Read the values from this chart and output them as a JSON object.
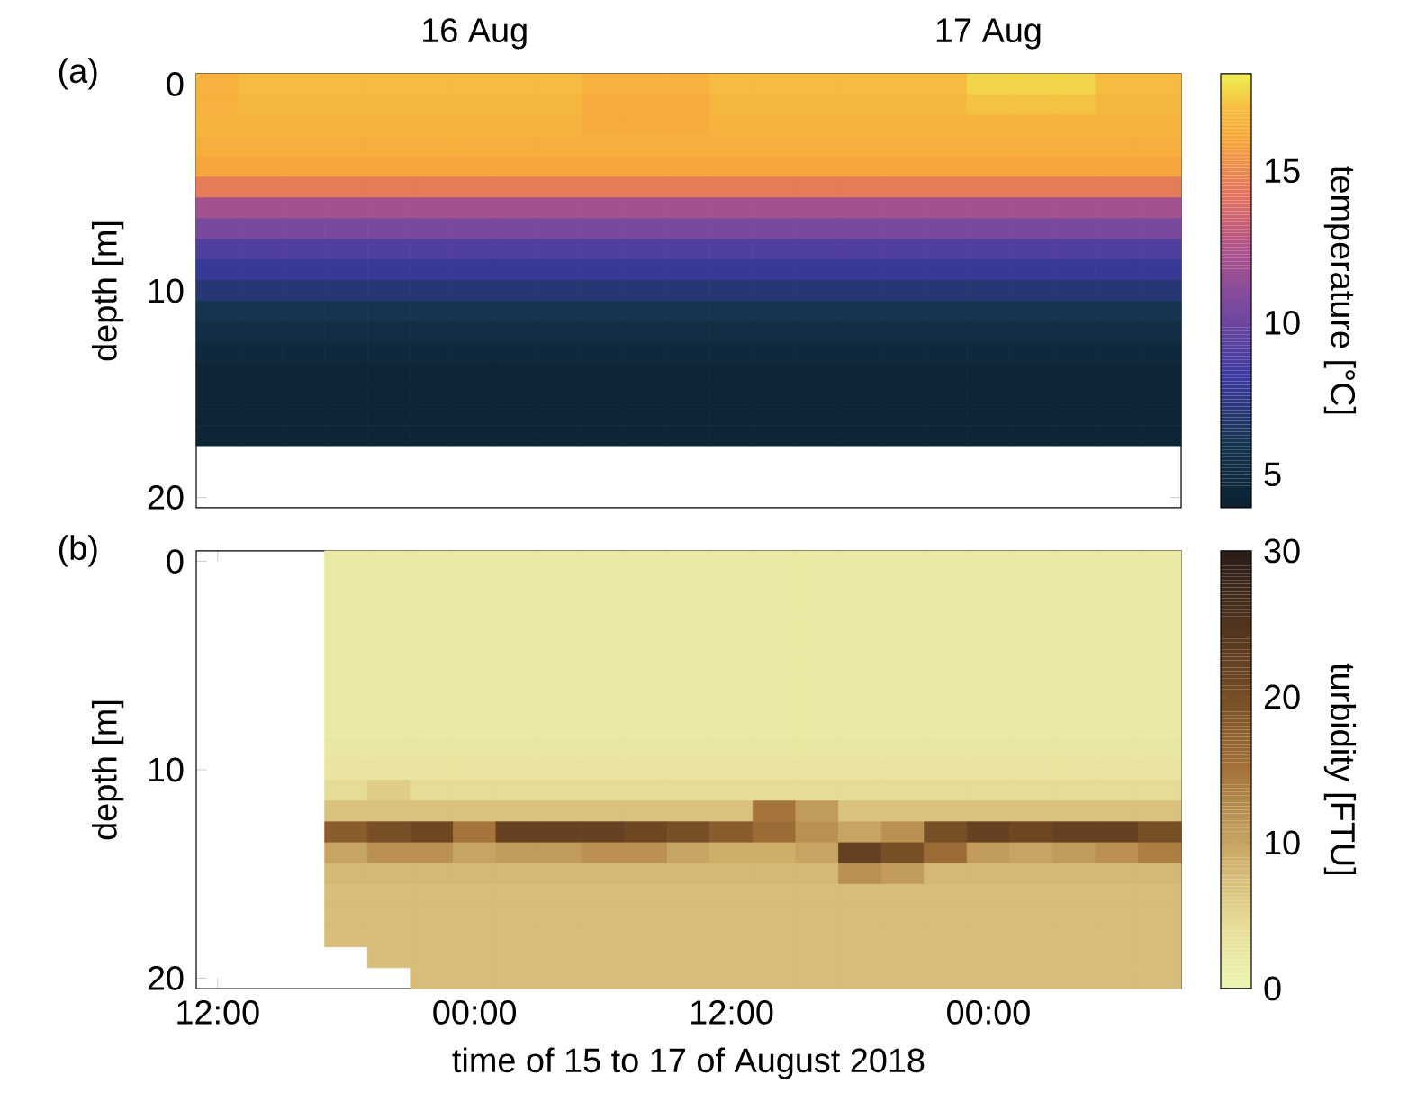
{
  "chart_data": [
    {
      "type": "heatmap",
      "ylabel": "depth [m]",
      "clabel": "temperature [°C]",
      "annotations": [
        "(a)",
        "16 Aug",
        "17 Aug",
        "20"
      ],
      "categories": [
        null,
        null,
        null,
        null,
        null,
        null,
        null,
        null,
        null,
        null,
        null,
        null,
        null,
        null,
        null,
        null,
        null,
        null,
        null,
        null,
        null,
        null,
        null
      ],
      "y_categories": [
        "0",
        null,
        null,
        null,
        null,
        null,
        null,
        null,
        null,
        null,
        "10",
        null,
        null,
        null,
        null,
        null,
        null,
        null
      ],
      "clim": [
        3.9,
        18.2
      ],
      "cticks": [
        5,
        10,
        15
      ],
      "cells": [
        [
          16.5,
          17,
          17,
          17,
          17,
          17,
          17,
          17,
          17,
          16.5,
          16.5,
          16.5,
          17,
          17,
          17,
          17,
          17,
          17,
          17.6,
          17.6,
          17.6,
          17,
          17
        ],
        [
          16.5,
          16.8,
          16.8,
          16.8,
          16.8,
          16.8,
          16.8,
          16.8,
          16.8,
          16.3,
          16.3,
          16.3,
          16.8,
          16.8,
          16.8,
          16.8,
          16.8,
          16.8,
          17.2,
          17.2,
          17.2,
          16.8,
          16.8
        ],
        [
          16.6,
          16.6,
          16.6,
          16.6,
          16.6,
          16.6,
          16.6,
          16.6,
          16.6,
          16.2,
          16.2,
          16.2,
          16.6,
          16.6,
          16.6,
          16.6,
          16.6,
          16.6,
          16.6,
          16.6,
          16.6,
          16.6,
          16.6
        ],
        [
          16.4,
          16.4,
          16.4,
          16.4,
          16.4,
          16.4,
          16.4,
          16.4,
          16.4,
          16.4,
          16.4,
          16.4,
          16.4,
          16.4,
          16.4,
          16.4,
          16.4,
          16.4,
          16.4,
          16.4,
          16.4,
          16.4,
          16.4
        ],
        [
          16,
          16,
          16,
          16,
          16,
          16,
          16,
          16,
          16,
          16,
          16,
          16,
          16,
          16,
          16,
          16,
          16,
          16,
          16,
          16,
          16,
          16,
          16
        ],
        [
          14.5,
          14.5,
          14.5,
          14.5,
          14.5,
          14.5,
          14.5,
          14.5,
          14.5,
          14.5,
          14.5,
          14.5,
          14.5,
          14.5,
          14.5,
          14.5,
          14.5,
          14.5,
          14.5,
          14.5,
          14.5,
          14.5,
          14.5
        ],
        [
          12,
          12,
          12,
          12,
          12,
          12,
          12,
          12,
          12,
          12,
          12,
          12,
          12,
          12,
          12,
          12,
          12,
          12,
          12,
          12,
          12,
          12,
          12
        ],
        [
          10.5,
          10.5,
          10.5,
          10.5,
          10.5,
          10.5,
          10.5,
          10.5,
          10.5,
          10.5,
          10.5,
          10.5,
          10.5,
          10.5,
          10.5,
          10.5,
          10.5,
          10.5,
          10.5,
          10.5,
          10.5,
          10.5,
          10.5
        ],
        [
          9,
          9,
          9,
          9,
          9,
          9,
          9,
          9,
          9,
          9,
          9,
          9,
          9,
          9,
          9,
          9,
          9,
          9,
          9,
          9,
          9,
          9,
          9
        ],
        [
          8,
          8,
          8,
          8,
          8,
          8,
          8,
          8,
          8,
          8,
          8,
          8,
          8,
          8,
          8,
          8,
          8,
          8,
          8,
          8,
          8,
          8,
          8
        ],
        [
          7,
          7,
          7,
          7,
          7,
          7,
          7,
          7,
          7,
          7,
          7,
          7,
          7,
          7,
          7,
          7,
          7,
          7,
          7,
          7,
          7,
          7,
          7
        ],
        [
          6,
          6,
          6,
          6,
          6,
          6,
          6,
          6,
          6,
          6,
          6,
          6,
          6,
          6,
          6,
          6,
          6,
          6,
          6,
          6,
          6,
          6,
          6
        ],
        [
          5.2,
          5.2,
          5.2,
          5.2,
          5.2,
          5.2,
          5.2,
          5.2,
          5.2,
          5.2,
          5.2,
          5.2,
          5.2,
          5.2,
          5.2,
          5.2,
          5.2,
          5.2,
          5.2,
          5.2,
          5.2,
          5.2,
          5.2
        ],
        [
          4.6,
          4.6,
          4.6,
          4.6,
          4.6,
          4.6,
          4.6,
          4.6,
          4.6,
          4.6,
          4.6,
          4.6,
          4.6,
          4.6,
          4.6,
          4.6,
          4.6,
          4.6,
          4.6,
          4.6,
          4.6,
          4.6,
          4.6
        ],
        [
          4.2,
          4.2,
          4.2,
          4.2,
          4.2,
          4.2,
          4.2,
          4.2,
          4.2,
          4.2,
          4.2,
          4.2,
          4.2,
          4.2,
          4.2,
          4.2,
          4.2,
          4.2,
          4.2,
          4.2,
          4.2,
          4.2,
          4.2
        ],
        [
          4.2,
          4.2,
          4.2,
          4.2,
          4.2,
          4.2,
          4.2,
          4.2,
          4.2,
          4.2,
          4.2,
          4.2,
          4.2,
          4.2,
          4.2,
          4.2,
          4.2,
          4.2,
          4.2,
          4.2,
          4.2,
          4.2,
          4.2
        ],
        [
          4.2,
          4.2,
          4.2,
          4.2,
          4.2,
          4.2,
          4.2,
          4.2,
          4.2,
          4.2,
          4.2,
          4.2,
          4.2,
          4.2,
          4.2,
          4.2,
          4.2,
          4.2,
          4.2,
          4.2,
          4.2,
          4.2,
          4.2
        ],
        [
          4.2,
          4.2,
          4.2,
          4.2,
          4.2,
          4.2,
          4.2,
          4.2,
          4.2,
          4.2,
          4.2,
          4.2,
          4.2,
          4.2,
          4.2,
          4.2,
          4.2,
          4.2,
          4.2,
          4.2,
          4.2,
          4.2,
          4.2
        ]
      ]
    },
    {
      "type": "heatmap",
      "xlabel": "time of 15 to 17 of August 2018",
      "ylabel": "depth [m]",
      "clabel": "turbidity [FTU]",
      "annotations": [
        "(b)"
      ],
      "categories": [
        "12:00",
        null,
        null,
        null,
        null,
        null,
        "00:00",
        null,
        null,
        null,
        null,
        null,
        "12:00",
        null,
        null,
        null,
        null,
        null,
        "00:00",
        null,
        null,
        null,
        null
      ],
      "y_categories": [
        "0",
        null,
        null,
        null,
        null,
        null,
        null,
        null,
        null,
        null,
        "10",
        null,
        null,
        null,
        null,
        null,
        null,
        null,
        null,
        null,
        "20"
      ],
      "clim": [
        0,
        30
      ],
      "cticks": [
        0,
        10,
        20,
        30
      ],
      "cells": [
        [
          null,
          null,
          null,
          2,
          2,
          2,
          2,
          2,
          2,
          2,
          2,
          2,
          2,
          2,
          2,
          2,
          2,
          2,
          2,
          2,
          2,
          2,
          2
        ],
        [
          null,
          null,
          null,
          2,
          2,
          2,
          2,
          2,
          2,
          2,
          2,
          2,
          2,
          2,
          2,
          2,
          2,
          2,
          2,
          2,
          2,
          2,
          2
        ],
        [
          null,
          null,
          null,
          2,
          2,
          2,
          2,
          2,
          2,
          2,
          2,
          2,
          2,
          2,
          2,
          2,
          2,
          2,
          2,
          2,
          2,
          2,
          2
        ],
        [
          null,
          null,
          null,
          2,
          2,
          2,
          2,
          2,
          2,
          2,
          2,
          2,
          2,
          2,
          2,
          2,
          2,
          2,
          2,
          2,
          2,
          2,
          2
        ],
        [
          null,
          null,
          null,
          2,
          2,
          2,
          2,
          2,
          2,
          2,
          2,
          2,
          2,
          2,
          2,
          2,
          2,
          2,
          2,
          2,
          2,
          2,
          2
        ],
        [
          null,
          null,
          null,
          2,
          2,
          2,
          2,
          2,
          2,
          2,
          2,
          2,
          2,
          2,
          2,
          2,
          2,
          2,
          2,
          2,
          2,
          2,
          2
        ],
        [
          null,
          null,
          null,
          2,
          2,
          2,
          2,
          2,
          2,
          2,
          2,
          2,
          2,
          2,
          2,
          2,
          2,
          2,
          2,
          2,
          2,
          2,
          2
        ],
        [
          null,
          null,
          null,
          2,
          2,
          2,
          2,
          2,
          2,
          2,
          2,
          2,
          2,
          2,
          2,
          2,
          2,
          2,
          2,
          2,
          2,
          2,
          2
        ],
        [
          null,
          null,
          null,
          2,
          2,
          2,
          2,
          2,
          2,
          2,
          2,
          2,
          2,
          2,
          2,
          2,
          2,
          2,
          2,
          2,
          2,
          2,
          2
        ],
        [
          null,
          null,
          null,
          2.5,
          2.5,
          2.5,
          2.5,
          2.5,
          2.5,
          2.5,
          2.5,
          2.5,
          2.5,
          2.5,
          2.5,
          2.5,
          2.5,
          2.5,
          2.5,
          2.5,
          2.5,
          2.5,
          2.5
        ],
        [
          null,
          null,
          null,
          3,
          3,
          3,
          3,
          3,
          3,
          3,
          3,
          3,
          3,
          3,
          3,
          3,
          3,
          3,
          3,
          3,
          3,
          3,
          3
        ],
        [
          null,
          null,
          null,
          4.5,
          6,
          4.5,
          4.5,
          4.5,
          4.5,
          4.5,
          4.5,
          4.5,
          4.5,
          4.5,
          4.5,
          4.5,
          4.5,
          4.5,
          4.5,
          4.5,
          4.5,
          4.5,
          4.5
        ],
        [
          null,
          null,
          null,
          7,
          7,
          7,
          7,
          7,
          7,
          7,
          7,
          7,
          7,
          15,
          11,
          7,
          7,
          7,
          7,
          7,
          7,
          7,
          7
        ],
        [
          null,
          null,
          null,
          18,
          20,
          21,
          15,
          22,
          22,
          22,
          21,
          20,
          18,
          16,
          12,
          10,
          12,
          20,
          22,
          21,
          22,
          22,
          20
        ],
        [
          null,
          null,
          null,
          10,
          12,
          12,
          10,
          11,
          11,
          12,
          12,
          10,
          9,
          9,
          10,
          22,
          20,
          16,
          11,
          10,
          11,
          12,
          14
        ],
        [
          null,
          null,
          null,
          8,
          8,
          8,
          8,
          8,
          8,
          8,
          8,
          8,
          8,
          8,
          8,
          12,
          11,
          8,
          8,
          8,
          8,
          8,
          8
        ],
        [
          null,
          null,
          null,
          7.5,
          7.5,
          7.5,
          7.5,
          7.5,
          7.5,
          7.5,
          7.5,
          7.5,
          7.5,
          7.5,
          7.5,
          7.5,
          7.5,
          7.5,
          7.5,
          7.5,
          7.5,
          7.5,
          7.5
        ],
        [
          null,
          null,
          null,
          7.5,
          7.5,
          7.5,
          7.5,
          7.5,
          7.5,
          7.5,
          7.5,
          7.5,
          7.5,
          7.5,
          7.5,
          7.5,
          7.5,
          7.5,
          7.5,
          7.5,
          7.5,
          7.5,
          7.5
        ],
        [
          null,
          null,
          null,
          7.5,
          7.5,
          7.5,
          7.5,
          7.5,
          7.5,
          7.5,
          7.5,
          7.5,
          7.5,
          7.5,
          7.5,
          7.5,
          7.5,
          7.5,
          7.5,
          7.5,
          7.5,
          7.5,
          7.5
        ],
        [
          null,
          null,
          null,
          null,
          7.5,
          7.5,
          7.5,
          7.5,
          7.5,
          7.5,
          7.5,
          7.5,
          7.5,
          7.5,
          7.5,
          7.5,
          7.5,
          7.5,
          7.5,
          7.5,
          7.5,
          7.5,
          7.5
        ],
        [
          null,
          null,
          null,
          null,
          null,
          7.5,
          7.5,
          7.5,
          7.5,
          7.5,
          7.5,
          7.5,
          7.5,
          7.5,
          7.5,
          7.5,
          7.5,
          7.5,
          7.5,
          7.5,
          7.5,
          7.5,
          7.5
        ]
      ]
    }
  ]
}
